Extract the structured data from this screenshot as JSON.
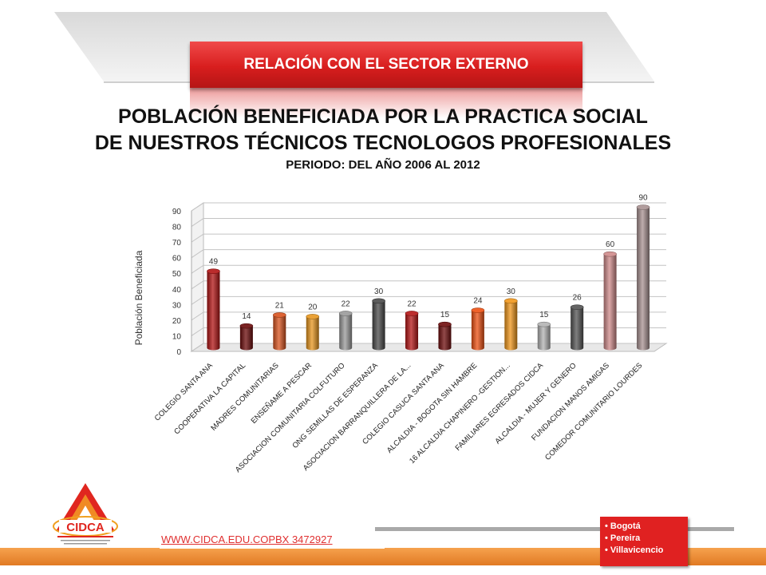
{
  "header": {
    "section_title": "RELACIÓN CON EL SECTOR EXTERNO",
    "title_line1": "POBLACIÓN BENEFICIADA POR LA PRACTICA SOCIAL",
    "title_line2": "DE NUESTROS TÉCNICOS TECNOLOGOS PROFESIONALES",
    "subtitle": "PERIODO:  DEL AÑO 2006  AL 2012"
  },
  "chart_data": {
    "type": "bar",
    "ylabel": "Población Beneficiada",
    "xlabel": "",
    "ylim": [
      0,
      90
    ],
    "yticks": [
      0,
      10,
      20,
      30,
      40,
      50,
      60,
      70,
      80,
      90
    ],
    "grid": true,
    "categories": [
      "COLEGIO SANTA ANA",
      "COOPERATIVA LA CAPITAL",
      "MADRES COMUNITARIAS",
      "ENSEÑAME A PESCAR",
      "ASOCIACION COMUNITARIA COLFUTURO",
      "ONG SEMILLAS DE ESPERANZA",
      "ASOCIACION BARRANQUILLERA DE LA...",
      "COLEGIO CASUCA SANTA ANA",
      "ALCALDIA - BOGOTA SIN HAMBRE",
      "16 ALCALDIA CHAPINERO -GESTION...",
      "FAMILIARES EGRESADOS CIDCA",
      "ALCALDIA - MUJER Y GENERO",
      "FUNDACION MANOS AMIGAS",
      "COMEDOR COMUNITARIO LOURDES"
    ],
    "values": [
      49,
      14,
      21,
      20,
      22,
      30,
      22,
      15,
      24,
      30,
      15,
      26,
      60,
      90
    ],
    "colors": [
      "#b21414",
      "#6b0a0a",
      "#d9531e",
      "#e8961e",
      "#9a9a9a",
      "#4a4a4a",
      "#b51616",
      "#6e0c0c",
      "#ee5012",
      "#f0961a",
      "#b3b3b3",
      "#545454",
      "#cf8a8a",
      "#a89292"
    ]
  },
  "footer": {
    "website": "WWW.CIDCA.EDU.COPBX  3472927",
    "cities": [
      "Bogotá",
      "Pereira",
      "Villavicencio"
    ]
  },
  "logo": {
    "text": "CIDCA",
    "tagline": "FUNDACION CENTRO DE INVESTIGACION, DOCENCIA Y CONSULTORIA ADMINISTRATIVA"
  }
}
